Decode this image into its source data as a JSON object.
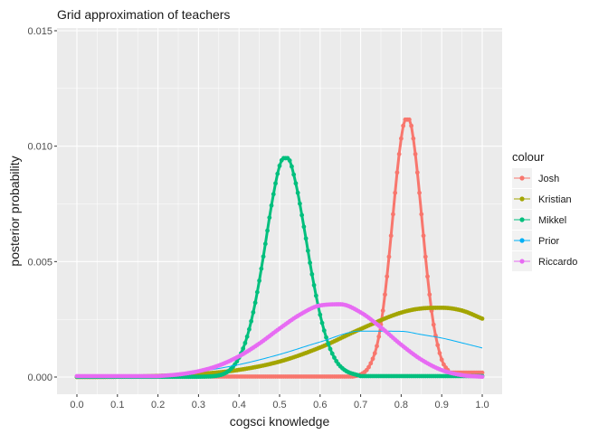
{
  "chart_data": {
    "type": "line",
    "title": "Grid approximation of teachers",
    "xlabel": "cogsci knowledge",
    "ylabel": "posterior probability",
    "xlim": [
      0,
      1
    ],
    "ylim": [
      0,
      0.015
    ],
    "x_ticks": [
      "0.0",
      "0.1",
      "0.2",
      "0.3",
      "0.4",
      "0.5",
      "0.6",
      "0.7",
      "0.8",
      "0.9",
      "1.0"
    ],
    "y_ticks": [
      "0.000",
      "0.005",
      "0.010",
      "0.015"
    ],
    "grid": true,
    "legend_title": "colour",
    "legend_position": "right",
    "series": [
      {
        "name": "Josh",
        "color": "#F8766D",
        "style": "points",
        "x": [
          0.68,
          0.7,
          0.72,
          0.74,
          0.75,
          0.76,
          0.77,
          0.78,
          0.79,
          0.8,
          0.81,
          0.82,
          0.83,
          0.84,
          0.85,
          0.86,
          0.87,
          0.88,
          0.9,
          0.92
        ],
        "y": [
          2e-05,
          0.00011,
          0.00043,
          0.00134,
          0.00227,
          0.00357,
          0.00521,
          0.00705,
          0.00886,
          0.01033,
          0.01115,
          0.01115,
          0.01033,
          0.00886,
          0.00705,
          0.00521,
          0.00357,
          0.00227,
          0.00075,
          0.00019
        ]
      },
      {
        "name": "Kristian",
        "color": "#A3A500",
        "style": "points",
        "x": [
          0.0,
          0.1,
          0.2,
          0.3,
          0.4,
          0.5,
          0.6,
          0.7,
          0.8,
          0.85,
          0.9,
          0.95,
          1.0
        ],
        "y": [
          0.0,
          1e-05,
          5e-05,
          0.00013,
          0.00031,
          0.00067,
          0.00128,
          0.00208,
          0.00279,
          0.00297,
          0.003,
          0.00288,
          0.00253
        ]
      },
      {
        "name": "Mikkel",
        "color": "#00BF7D",
        "style": "points",
        "x": [
          0.3,
          0.35,
          0.38,
          0.4,
          0.42,
          0.44,
          0.46,
          0.48,
          0.5,
          0.51,
          0.52,
          0.54,
          0.56,
          0.58,
          0.6,
          0.62,
          0.64,
          0.66,
          0.7
        ],
        "y": [
          1e-05,
          7e-05,
          0.00035,
          0.00084,
          0.00175,
          0.00322,
          0.00522,
          0.00743,
          0.00915,
          0.00948,
          0.00948,
          0.00839,
          0.00651,
          0.00445,
          0.0027,
          0.00145,
          0.00069,
          0.00031,
          4e-05
        ]
      },
      {
        "name": "Prior",
        "color": "#00B0F6",
        "style": "line",
        "x": [
          0.0,
          0.1,
          0.2,
          0.3,
          0.4,
          0.5,
          0.6,
          0.7,
          0.8,
          0.85,
          0.9,
          0.95,
          1.0
        ],
        "y": [
          0.0,
          2e-05,
          8e-05,
          0.00024,
          0.00054,
          0.00098,
          0.00152,
          0.00199,
          0.00198,
          0.00184,
          0.00169,
          0.00148,
          0.00126
        ]
      },
      {
        "name": "Riccardo",
        "color": "#E76BF3",
        "style": "points",
        "x": [
          0.2,
          0.25,
          0.3,
          0.35,
          0.4,
          0.45,
          0.5,
          0.55,
          0.6,
          0.65,
          0.7,
          0.75,
          0.8,
          0.85,
          0.9,
          0.95,
          1.0
        ],
        "y": [
          4e-05,
          0.00011,
          0.00025,
          0.0005,
          0.0009,
          0.00145,
          0.0021,
          0.0027,
          0.0031,
          0.00315,
          0.0028,
          0.00215,
          0.0014,
          0.00075,
          0.0003,
          8e-05,
          1e-05
        ]
      }
    ]
  }
}
